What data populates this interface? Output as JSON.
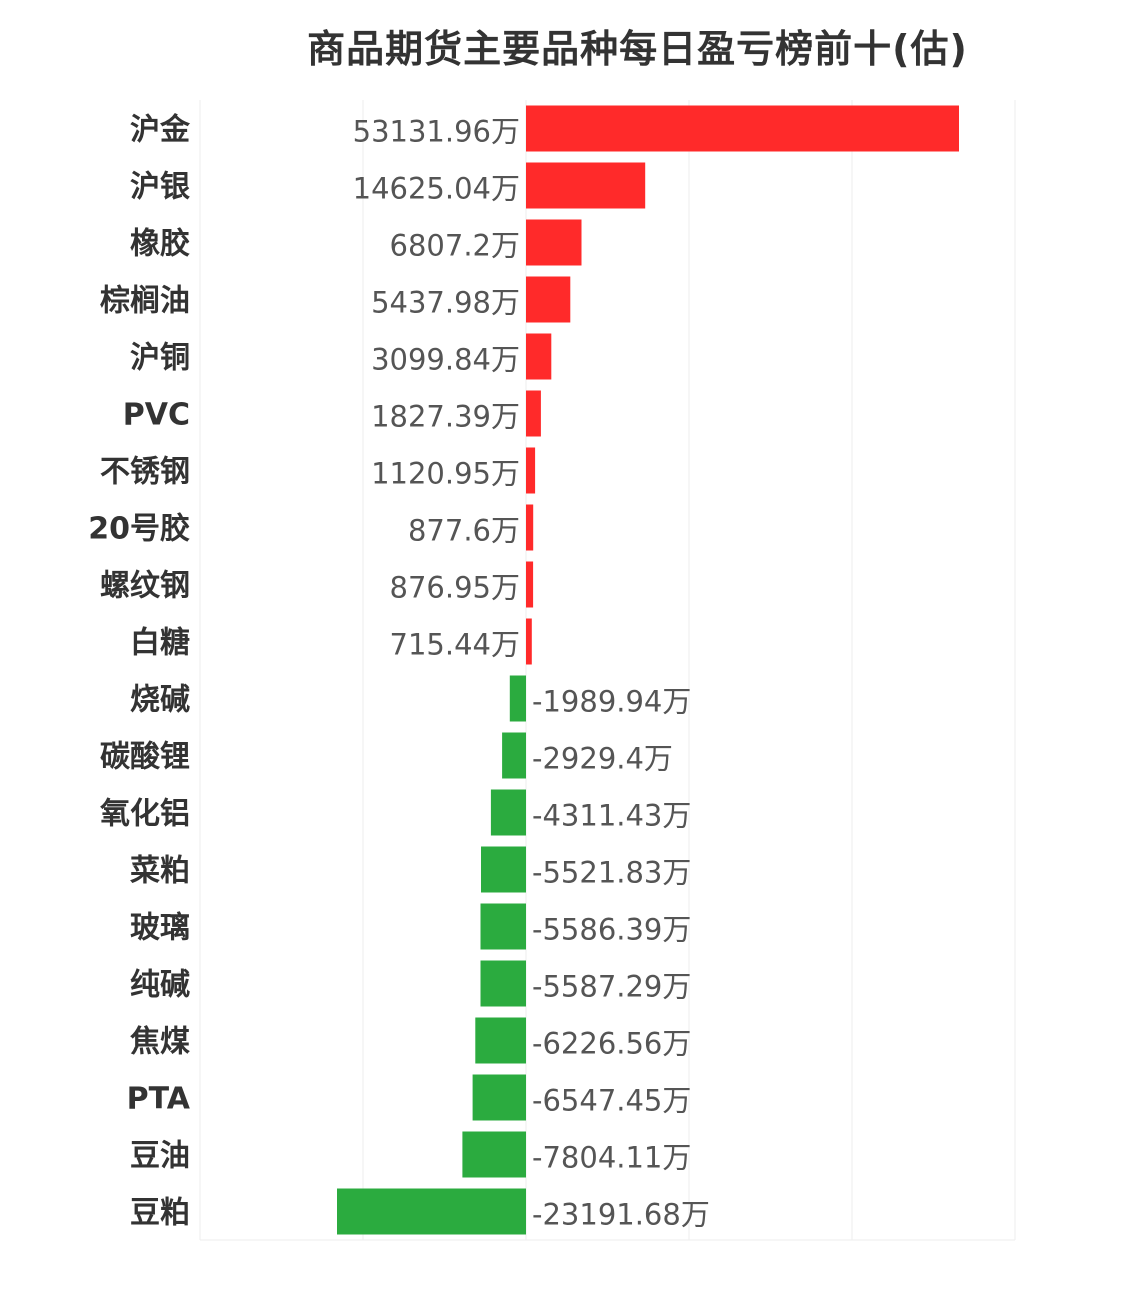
{
  "colors": {
    "positive": "#ff2a2a",
    "negative": "#2bab3f",
    "grid": "#eeeeee",
    "label": "#333333",
    "value_text": "#555555"
  },
  "chart_data": {
    "type": "bar",
    "orientation": "horizontal",
    "title": "商品期货主要品种每日盈亏榜前十(估)",
    "unit_suffix": "万",
    "grid": true,
    "categories": [
      "沪金",
      "沪银",
      "橡胶",
      "棕榈油",
      "沪铜",
      "PVC",
      "不锈钢",
      "20号胶",
      "螺纹钢",
      "白糖",
      "烧碱",
      "碳酸锂",
      "氧化铝",
      "菜粕",
      "玻璃",
      "纯碱",
      "焦煤",
      "PTA",
      "豆油",
      "豆粕"
    ],
    "values": [
      53131.96,
      14625.04,
      6807.2,
      5437.98,
      3099.84,
      1827.39,
      1120.95,
      877.6,
      876.95,
      715.44,
      -1989.94,
      -2929.4,
      -4311.43,
      -5521.83,
      -5586.39,
      -5587.29,
      -6226.56,
      -6547.45,
      -7804.11,
      -23191.68
    ],
    "value_labels": [
      "53131.96万",
      "14625.04万",
      "6807.2万",
      "5437.98万",
      "3099.84万",
      "1827.39万",
      "1120.95万",
      "877.6万",
      "876.95万",
      "715.44万",
      "-1989.94万",
      "-2929.4万",
      "-4311.43万",
      "-5521.83万",
      "-5586.39万",
      "-5587.29万",
      "-6226.56万",
      "-6547.45万",
      "-7804.11万",
      "-23191.68万"
    ],
    "xlim": [
      -40000,
      60000
    ]
  }
}
